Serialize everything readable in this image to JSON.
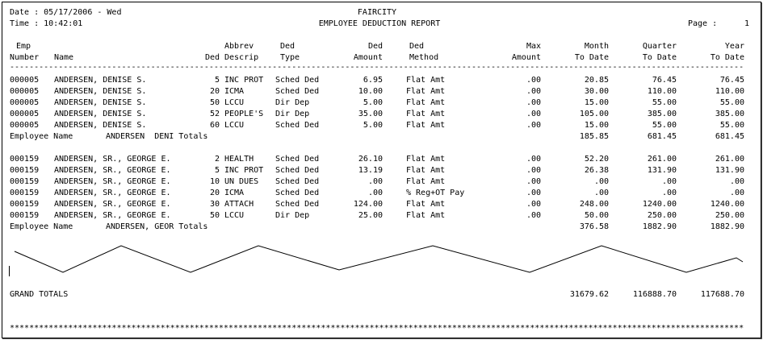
{
  "header": {
    "date_line": "Date : 05/17/2006 - Wed",
    "time_line": "Time : 10:42:01",
    "company": "FAIRCITY",
    "report_title": "EMPLOYEE DEDUCTION REPORT",
    "page_label": "Page :",
    "page_number": "1"
  },
  "columns": [
    {
      "line1": "Emp",
      "line2": "Number"
    },
    {
      "line1": "",
      "line2": "Name"
    },
    {
      "line1": "",
      "line2": "Ded"
    },
    {
      "line1": "Abbrev",
      "line2": "Descrip"
    },
    {
      "line1": "Ded",
      "line2": "Type"
    },
    {
      "line1": "Ded",
      "line2": "Amount"
    },
    {
      "line1": "Ded",
      "line2": "Method"
    },
    {
      "line1": "Max",
      "line2": "Amount"
    },
    {
      "line1": "Month",
      "line2": "To Date"
    },
    {
      "line1": "Quarter",
      "line2": "To Date"
    },
    {
      "line1": "Year",
      "line2": "To Date"
    }
  ],
  "separator": "---------------------------------------------------------------------------------------------------------------------------------------------------------------------------",
  "groups": [
    {
      "rows": [
        {
          "emp": "000005",
          "name": "ANDERSEN, DENISE S.",
          "ded": "5",
          "descrip": "INC PROT",
          "type": "Sched Ded",
          "amount": "6.95",
          "method": "Flat Amt",
          "max": ".00",
          "mtd": "20.85",
          "qtd": "76.45",
          "ytd": "76.45"
        },
        {
          "emp": "000005",
          "name": "ANDERSEN, DENISE S.",
          "ded": "20",
          "descrip": "ICMA",
          "type": "Sched Ded",
          "amount": "10.00",
          "method": "Flat Amt",
          "max": ".00",
          "mtd": "30.00",
          "qtd": "110.00",
          "ytd": "110.00"
        },
        {
          "emp": "000005",
          "name": "ANDERSEN, DENISE S.",
          "ded": "50",
          "descrip": "LCCU",
          "type": "Dir Dep",
          "amount": "5.00",
          "method": "Flat Amt",
          "max": ".00",
          "mtd": "15.00",
          "qtd": "55.00",
          "ytd": "55.00"
        },
        {
          "emp": "000005",
          "name": "ANDERSEN, DENISE S.",
          "ded": "52",
          "descrip": "PEOPLE'S",
          "type": "Dir Dep",
          "amount": "35.00",
          "method": "Flat Amt",
          "max": ".00",
          "mtd": "105.00",
          "qtd": "385.00",
          "ytd": "385.00"
        },
        {
          "emp": "000005",
          "name": "ANDERSEN, DENISE S.",
          "ded": "60",
          "descrip": "LCCU",
          "type": "Sched Ded",
          "amount": "5.00",
          "method": "Flat Amt",
          "max": ".00",
          "mtd": "15.00",
          "qtd": "55.00",
          "ytd": "55.00"
        }
      ],
      "total": {
        "label": "Employee Name",
        "name": "ANDERSEN  DENI Totals",
        "mtd": "185.85",
        "qtd": "681.45",
        "ytd": "681.45"
      }
    },
    {
      "rows": [
        {
          "emp": "000159",
          "name": "ANDERSEN, SR., GEORGE E.",
          "ded": "2",
          "descrip": "HEALTH",
          "type": "Sched Ded",
          "amount": "26.10",
          "method": "Flat Amt",
          "max": ".00",
          "mtd": "52.20",
          "qtd": "261.00",
          "ytd": "261.00"
        },
        {
          "emp": "000159",
          "name": "ANDERSEN, SR., GEORGE E.",
          "ded": "5",
          "descrip": "INC PROT",
          "type": "Sched Ded",
          "amount": "13.19",
          "method": "Flat Amt",
          "max": ".00",
          "mtd": "26.38",
          "qtd": "131.90",
          "ytd": "131.90"
        },
        {
          "emp": "000159",
          "name": "ANDERSEN, SR., GEORGE E.",
          "ded": "10",
          "descrip": "UN DUES",
          "type": "Sched Ded",
          "amount": ".00",
          "method": "Flat Amt",
          "max": ".00",
          "mtd": ".00",
          "qtd": ".00",
          "ytd": ".00"
        },
        {
          "emp": "000159",
          "name": "ANDERSEN, SR., GEORGE E.",
          "ded": "20",
          "descrip": "ICMA",
          "type": "Sched Ded",
          "amount": ".00",
          "method": "% Reg+OT Pay",
          "max": ".00",
          "mtd": ".00",
          "qtd": ".00",
          "ytd": ".00"
        },
        {
          "emp": "000159",
          "name": "ANDERSEN, SR., GEORGE E.",
          "ded": "30",
          "descrip": "ATTACH",
          "type": "Sched Ded",
          "amount": "124.00",
          "method": "Flat Amt",
          "max": ".00",
          "mtd": "248.00",
          "qtd": "1240.00",
          "ytd": "1240.00"
        },
        {
          "emp": "000159",
          "name": "ANDERSEN, SR., GEORGE E.",
          "ded": "50",
          "descrip": "LCCU",
          "type": "Dir Dep",
          "amount": "25.00",
          "method": "Flat Amt",
          "max": ".00",
          "mtd": "50.00",
          "qtd": "250.00",
          "ytd": "250.00"
        }
      ],
      "total": {
        "label": "Employee Name",
        "name": "ANDERSEN, GEOR Totals",
        "mtd": "376.58",
        "qtd": "1882.90",
        "ytd": "1882.90"
      }
    }
  ],
  "grand_totals": {
    "label": "GRAND TOTALS",
    "mtd": "31679.62",
    "qtd": "116888.70",
    "ytd": "117688.70"
  },
  "footer_stars": "**************************************************************************************************************************************************************************"
}
